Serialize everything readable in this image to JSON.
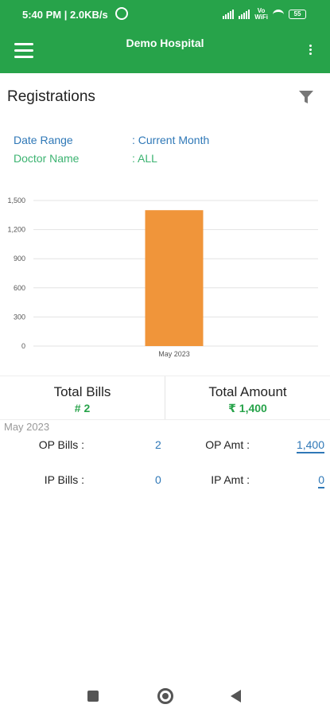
{
  "status_bar": {
    "time": "5:40 PM | 2.0KB/s",
    "volte_label": "Vo\nWiFi",
    "battery": "55",
    "icons": [
      "alarm-icon",
      "signal-icon",
      "signal-icon",
      "volte-icon",
      "wifi-icon",
      "battery-icon"
    ]
  },
  "app_bar": {
    "title": "Demo Hospital",
    "icons": [
      "menu-icon",
      "more-icon"
    ]
  },
  "page": {
    "title": "Registrations",
    "filter_icon": "filter-icon"
  },
  "filters": {
    "date_range_label": "Date Range",
    "date_range_value": ": Current Month",
    "doctor_name_label": "Doctor Name",
    "doctor_name_value": ": ALL"
  },
  "colors": {
    "primary": "#27a34a",
    "bar": "#f0953a",
    "link": "#2f78b7",
    "doctor": "#3cb371"
  },
  "chart_data": {
    "type": "bar",
    "categories": [
      "May 2023"
    ],
    "values": [
      1400
    ],
    "yticks": [
      "1,500",
      "1,200",
      "900",
      "600",
      "300",
      "0"
    ],
    "ylim": [
      0,
      1500
    ],
    "grid": true
  },
  "summary": {
    "total_bills_label": "Total Bills",
    "total_bills_value": "# 2",
    "total_amount_label": "Total Amount",
    "total_amount_value": "₹ 1,400"
  },
  "details": {
    "month": "May 2023",
    "op_bills_label": "OP Bills :",
    "op_bills_value": "2",
    "op_amt_label": "OP Amt :",
    "op_amt_value": "1,400",
    "ip_bills_label": "IP Bills :",
    "ip_bills_value": "0",
    "ip_amt_label": "IP Amt :",
    "ip_amt_value": "0"
  },
  "nav": {
    "icons": [
      "recents-icon",
      "home-icon",
      "back-icon"
    ]
  }
}
